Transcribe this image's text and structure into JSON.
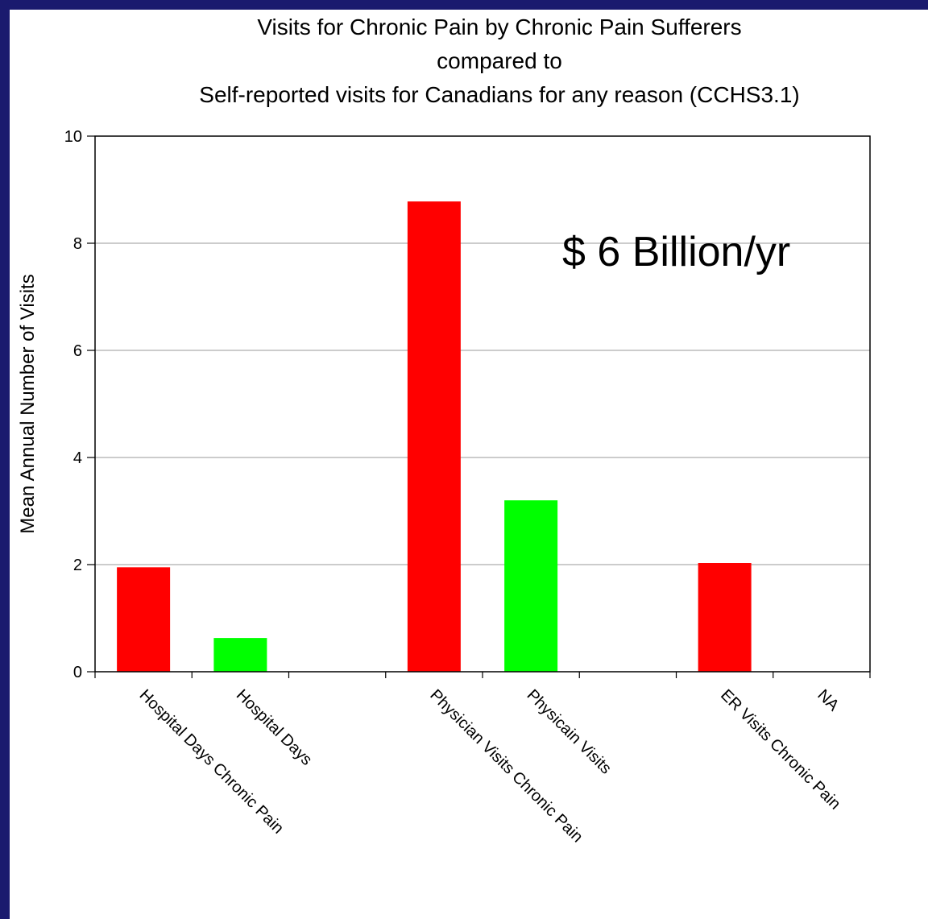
{
  "slide": {
    "background_color": "#1a1a6e",
    "panel_color": "#ffffff"
  },
  "chart_data": {
    "type": "bar",
    "title_lines": [
      "Visits for Chronic Pain by Chronic Pain Sufferers",
      "compared to",
      "Self-reported visits for Canadians for any reason (CCHS3.1)"
    ],
    "ylabel": "Mean Annual Number of Visits",
    "xlabel": "",
    "ylim": [
      0,
      10
    ],
    "yticks": [
      0,
      2,
      4,
      6,
      8,
      10
    ],
    "grid": true,
    "categories": [
      "Hospital Days Chronic Pain",
      "Hospital Days",
      "",
      "Physician Visits Chronic Pain",
      "Physicain Visits",
      "",
      "ER Visits Chronic Pain",
      "NA"
    ],
    "values": [
      1.95,
      0.63,
      null,
      8.78,
      3.2,
      null,
      2.03,
      0
    ],
    "bar_colors": [
      "#ff0000",
      "#00ff00",
      null,
      "#ff0000",
      "#00ff00",
      null,
      "#ff0000",
      "#00ff00"
    ],
    "annotation": "$ 6 Billion/yr"
  }
}
